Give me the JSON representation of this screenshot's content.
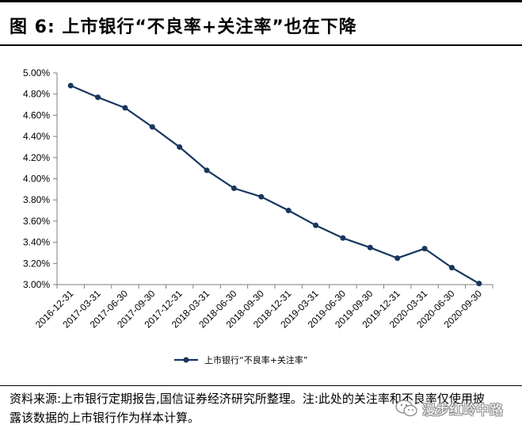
{
  "figure": {
    "title": "图 6:  上市银行“不良率+关注率”也在下降",
    "source": "资料来源:上市银行定期报告,国信证券经济研究所整理。注:此处的关注率和不良率仅使用披露该数据的上市银行作为样本计算。",
    "watermark": "漫步红岭中路"
  },
  "chart_data": {
    "type": "line",
    "x": [
      "2016-12-31",
      "2017-03-31",
      "2017-06-30",
      "2017-09-30",
      "2017-12-31",
      "2018-03-31",
      "2018-06-30",
      "2018-09-30",
      "2018-12-31",
      "2019-03-31",
      "2019-06-30",
      "2019-09-30",
      "2019-12-31",
      "2020-03-31",
      "2020-06-30",
      "2020-09-30"
    ],
    "series": [
      {
        "name": "上市银行“不良率+关注率”",
        "values": [
          4.88,
          4.77,
          4.67,
          4.49,
          4.3,
          4.08,
          3.91,
          3.83,
          3.7,
          3.56,
          3.44,
          3.35,
          3.25,
          3.34,
          3.16,
          3.01
        ]
      }
    ],
    "ylim": [
      3.0,
      5.0
    ],
    "yticks": [
      "3.00%",
      "3.20%",
      "3.40%",
      "3.60%",
      "3.80%",
      "4.00%",
      "4.20%",
      "4.40%",
      "4.60%",
      "4.80%",
      "5.00%"
    ],
    "grid": false,
    "legend": "bottom",
    "colors": {
      "line": "#17375E"
    }
  }
}
